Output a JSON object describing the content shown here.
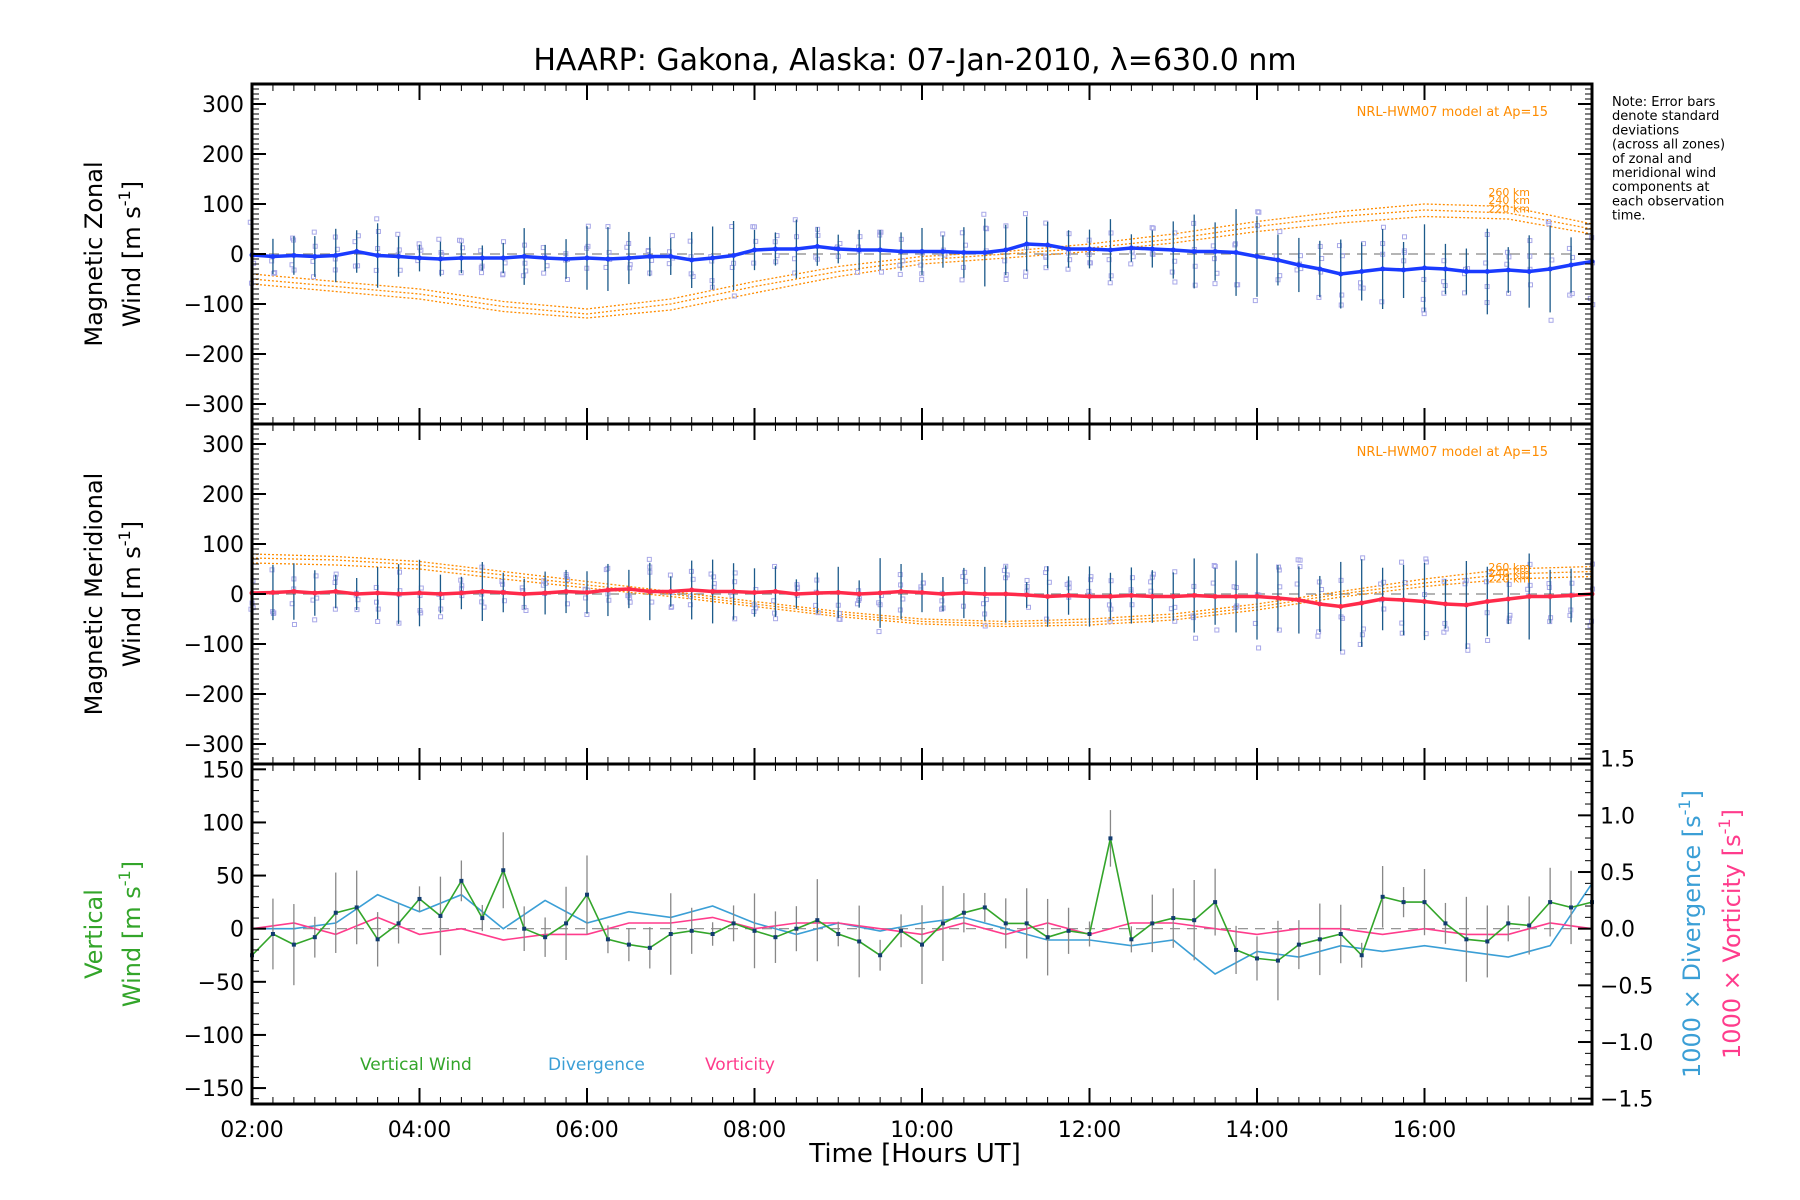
{
  "title": "HAARP: Gakona,  Alaska: 07-Jan-2010, λ=630.0 nm",
  "xlabel": "Time [Hours UT]",
  "x_tick_labels": [
    "02:00",
    "04:00",
    "06:00",
    "08:00",
    "10:00",
    "12:00",
    "14:00",
    "16:00"
  ],
  "note": [
    "Note: Error bars",
    "denote standard",
    "deviations",
    "(across all zones)",
    "of zonal and",
    "meridional wind",
    "components at",
    "each observation",
    "time."
  ],
  "model_label": "NRL-HWM07 model at Ap=15",
  "km_labels": [
    "260 km",
    "240 km",
    "220 km"
  ],
  "colors": {
    "zonal": "#1a3bff",
    "meridional": "#ff2a4a",
    "vertical": "#33a52a",
    "divergence": "#3b9fd6",
    "vorticity": "#ff3c8c",
    "model": "#ff8c00",
    "points": "#a8a8e8",
    "errorbar": "#1c5a8a"
  },
  "chart_data": [
    {
      "type": "line",
      "panel": "zonal",
      "ylabel_line1": "Magnetic Zonal",
      "ylabel_line2": "Wind [m s",
      "ylabel_sup": "-1",
      "ylabel_end": "]",
      "y_tick_labels": [
        "300",
        "200",
        "100",
        "0",
        "−100",
        "−200",
        "−300"
      ],
      "ylim": [
        -340,
        340
      ],
      "xlim": [
        2.0,
        18.0
      ],
      "x": [
        2.0,
        2.25,
        2.5,
        2.75,
        3.0,
        3.25,
        3.5,
        3.75,
        4.0,
        4.25,
        4.5,
        4.75,
        5.0,
        5.25,
        5.5,
        5.75,
        6.0,
        6.25,
        6.5,
        6.75,
        7.0,
        7.25,
        7.5,
        7.75,
        8.0,
        8.25,
        8.5,
        8.75,
        9.0,
        9.25,
        9.5,
        9.75,
        10.0,
        10.25,
        10.5,
        10.75,
        11.0,
        11.25,
        11.5,
        11.75,
        12.0,
        12.25,
        12.5,
        12.75,
        13.0,
        13.25,
        13.5,
        13.75,
        14.0,
        14.25,
        14.5,
        14.75,
        15.0,
        15.25,
        15.5,
        15.75,
        16.0,
        16.25,
        16.5,
        16.75,
        17.0,
        17.25,
        17.5,
        17.75,
        18.0
      ],
      "values": [
        -2,
        -5,
        -3,
        -5,
        -3,
        5,
        -3,
        -5,
        -8,
        -10,
        -8,
        -8,
        -8,
        -5,
        -8,
        -10,
        -8,
        -10,
        -8,
        -5,
        -5,
        -12,
        -8,
        -3,
        8,
        10,
        10,
        15,
        10,
        8,
        8,
        5,
        5,
        5,
        3,
        3,
        8,
        20,
        18,
        10,
        10,
        8,
        12,
        10,
        8,
        5,
        5,
        3,
        -5,
        -12,
        -22,
        -30,
        -40,
        -35,
        -30,
        -32,
        -28,
        -30,
        -35,
        -35,
        -32,
        -35,
        -30,
        -22,
        -15
      ],
      "model_curves": [
        {
          "name": "260 km",
          "x": [
            2,
            3,
            4,
            5,
            6,
            7,
            8,
            9,
            10,
            11,
            12,
            13,
            14,
            15,
            16,
            17,
            18
          ],
          "values": [
            -40,
            -55,
            -70,
            -95,
            -110,
            -90,
            -55,
            -25,
            -5,
            5,
            20,
            40,
            65,
            85,
            100,
            95,
            60
          ]
        },
        {
          "name": "240 km",
          "x": [
            2,
            3,
            4,
            5,
            6,
            7,
            8,
            9,
            10,
            11,
            12,
            13,
            14,
            15,
            16,
            17,
            18
          ],
          "values": [
            -50,
            -65,
            -80,
            -105,
            -120,
            -100,
            -65,
            -35,
            -12,
            0,
            12,
            30,
            55,
            75,
            88,
            82,
            50
          ]
        },
        {
          "name": "220 km",
          "x": [
            2,
            3,
            4,
            5,
            6,
            7,
            8,
            9,
            10,
            11,
            12,
            13,
            14,
            15,
            16,
            17,
            18
          ],
          "values": [
            -60,
            -75,
            -90,
            -115,
            -128,
            -112,
            -78,
            -45,
            -20,
            -8,
            5,
            22,
            45,
            62,
            75,
            70,
            40
          ]
        }
      ]
    },
    {
      "type": "line",
      "panel": "meridional",
      "ylabel_line1": "Magnetic Meridional",
      "ylabel_line2": "Wind [m s",
      "ylabel_sup": "-1",
      "ylabel_end": "]",
      "y_tick_labels": [
        "300",
        "200",
        "100",
        "0",
        "−100",
        "−200",
        "−300"
      ],
      "ylim": [
        -340,
        340
      ],
      "xlim": [
        2.0,
        18.0
      ],
      "x": [
        2.0,
        2.25,
        2.5,
        2.75,
        3.0,
        3.25,
        3.5,
        3.75,
        4.0,
        4.25,
        4.5,
        4.75,
        5.0,
        5.25,
        5.5,
        5.75,
        6.0,
        6.25,
        6.5,
        6.75,
        7.0,
        7.25,
        7.5,
        7.75,
        8.0,
        8.25,
        8.5,
        8.75,
        9.0,
        9.25,
        9.5,
        9.75,
        10.0,
        10.25,
        10.5,
        10.75,
        11.0,
        11.25,
        11.5,
        11.75,
        12.0,
        12.25,
        12.5,
        12.75,
        13.0,
        13.25,
        13.5,
        13.75,
        14.0,
        14.25,
        14.5,
        14.75,
        15.0,
        15.25,
        15.5,
        15.75,
        16.0,
        16.25,
        16.5,
        16.75,
        17.0,
        17.25,
        17.5,
        17.75,
        18.0
      ],
      "values": [
        2,
        3,
        5,
        2,
        5,
        0,
        2,
        0,
        2,
        0,
        2,
        5,
        3,
        0,
        2,
        5,
        3,
        8,
        10,
        5,
        5,
        8,
        5,
        5,
        3,
        5,
        0,
        2,
        3,
        0,
        2,
        5,
        3,
        0,
        2,
        0,
        0,
        -2,
        -5,
        -3,
        -5,
        -5,
        -3,
        -5,
        -5,
        -3,
        -5,
        -5,
        -5,
        -8,
        -12,
        -20,
        -25,
        -18,
        -10,
        -12,
        -15,
        -20,
        -22,
        -15,
        -10,
        -5,
        -5,
        -3,
        0
      ],
      "model_curves": [
        {
          "name": "260 km",
          "x": [
            2,
            3,
            4,
            5,
            6,
            7,
            8,
            9,
            10,
            11,
            12,
            13,
            14,
            15,
            16,
            17,
            18
          ],
          "values": [
            80,
            75,
            65,
            45,
            25,
            5,
            -15,
            -35,
            -50,
            -55,
            -50,
            -40,
            -20,
            5,
            30,
            50,
            55
          ]
        },
        {
          "name": "240 km",
          "x": [
            2,
            3,
            4,
            5,
            6,
            7,
            8,
            9,
            10,
            11,
            12,
            13,
            14,
            15,
            16,
            17,
            18
          ],
          "values": [
            72,
            68,
            58,
            38,
            18,
            0,
            -20,
            -40,
            -55,
            -60,
            -56,
            -46,
            -26,
            0,
            22,
            40,
            45
          ]
        },
        {
          "name": "220 km",
          "x": [
            2,
            3,
            4,
            5,
            6,
            7,
            8,
            9,
            10,
            11,
            12,
            13,
            14,
            15,
            16,
            17,
            18
          ],
          "values": [
            62,
            58,
            50,
            30,
            12,
            -5,
            -25,
            -45,
            -60,
            -65,
            -62,
            -52,
            -32,
            -6,
            15,
            30,
            35
          ]
        }
      ]
    },
    {
      "type": "line",
      "panel": "vertical",
      "ylabel_line1": "Vertical",
      "ylabel_line2": "Wind [m s",
      "ylabel_sup": "-1",
      "ylabel_end": "]",
      "y_tick_labels": [
        "150",
        "100",
        "50",
        "0",
        "−50",
        "−100",
        "−150"
      ],
      "ylim": [
        -165,
        155
      ],
      "xlim": [
        2.0,
        18.0
      ],
      "right_axis": {
        "ylim": [
          -1.5,
          1.5
        ],
        "tick_labels": [
          "1.5",
          "1.0",
          "0.5",
          "0.0",
          "−0.5",
          "−1.0",
          "−1.5"
        ],
        "label1_a": "1000 × Divergence [s",
        "label1_sup": "-1",
        "label1_end": "]",
        "label2_a": "1000 × Vorticity [s",
        "label2_sup": "-1",
        "label2_end": "]"
      },
      "legend": [
        "Vertical Wind",
        "Divergence",
        "Vorticity"
      ],
      "series": [
        {
          "name": "Vertical Wind",
          "x": [
            2.0,
            2.25,
            2.5,
            2.75,
            3.0,
            3.25,
            3.5,
            3.75,
            4.0,
            4.25,
            4.5,
            4.75,
            5.0,
            5.25,
            5.5,
            5.75,
            6.0,
            6.25,
            6.5,
            6.75,
            7.0,
            7.25,
            7.5,
            7.75,
            8.0,
            8.25,
            8.5,
            8.75,
            9.0,
            9.25,
            9.5,
            9.75,
            10.0,
            10.25,
            10.5,
            10.75,
            11.0,
            11.25,
            11.5,
            11.75,
            12.0,
            12.25,
            12.5,
            12.75,
            13.0,
            13.25,
            13.5,
            13.75,
            14.0,
            14.25,
            14.5,
            14.75,
            15.0,
            15.25,
            15.5,
            15.75,
            16.0,
            16.25,
            16.5,
            16.75,
            17.0,
            17.25,
            17.5,
            17.75,
            18.0
          ],
          "values": [
            -25,
            -5,
            -15,
            -8,
            15,
            20,
            -10,
            5,
            28,
            12,
            45,
            10,
            55,
            0,
            -8,
            5,
            32,
            -10,
            -15,
            -18,
            -5,
            -2,
            -5,
            5,
            -2,
            -8,
            0,
            8,
            -5,
            -12,
            -25,
            -2,
            -15,
            5,
            15,
            20,
            5,
            5,
            -8,
            -2,
            -5,
            85,
            -10,
            5,
            10,
            8,
            25,
            -20,
            -28,
            -30,
            -15,
            -10,
            -5,
            -25,
            30,
            25,
            25,
            5,
            -10,
            -12,
            5,
            3,
            25,
            20,
            25
          ]
        },
        {
          "name": "Divergence",
          "x": [
            2.0,
            2.5,
            3.0,
            3.5,
            4.0,
            4.5,
            5.0,
            5.5,
            6.0,
            6.5,
            7.0,
            7.5,
            8.0,
            8.5,
            9.0,
            9.5,
            10.0,
            10.5,
            11.0,
            11.5,
            12.0,
            12.5,
            13.0,
            13.5,
            14.0,
            14.5,
            15.0,
            15.5,
            16.0,
            16.5,
            17.0,
            17.5,
            18.0
          ],
          "values": [
            0.0,
            0.0,
            0.05,
            0.3,
            0.15,
            0.3,
            0.0,
            0.25,
            0.05,
            0.15,
            0.1,
            0.2,
            0.05,
            -0.05,
            0.05,
            -0.02,
            0.05,
            0.1,
            0.0,
            -0.1,
            -0.1,
            -0.15,
            -0.1,
            -0.4,
            -0.2,
            -0.25,
            -0.15,
            -0.2,
            -0.15,
            -0.2,
            -0.25,
            -0.15,
            0.4
          ]
        },
        {
          "name": "Vorticity",
          "x": [
            2.0,
            2.5,
            3.0,
            3.5,
            4.0,
            4.5,
            5.0,
            5.5,
            6.0,
            6.5,
            7.0,
            7.5,
            8.0,
            8.5,
            9.0,
            9.5,
            10.0,
            10.5,
            11.0,
            11.5,
            12.0,
            12.5,
            13.0,
            13.5,
            14.0,
            14.5,
            15.0,
            15.5,
            16.0,
            16.5,
            17.0,
            17.5,
            18.0
          ],
          "values": [
            0.0,
            0.05,
            -0.05,
            0.1,
            -0.05,
            0.0,
            -0.1,
            -0.05,
            -0.05,
            0.05,
            0.05,
            0.1,
            0.0,
            0.05,
            0.05,
            0.0,
            -0.05,
            0.05,
            -0.05,
            0.05,
            -0.05,
            0.05,
            0.05,
            0.0,
            -0.05,
            0.0,
            0.0,
            -0.05,
            0.0,
            -0.05,
            -0.05,
            0.05,
            0.0
          ]
        }
      ]
    }
  ]
}
